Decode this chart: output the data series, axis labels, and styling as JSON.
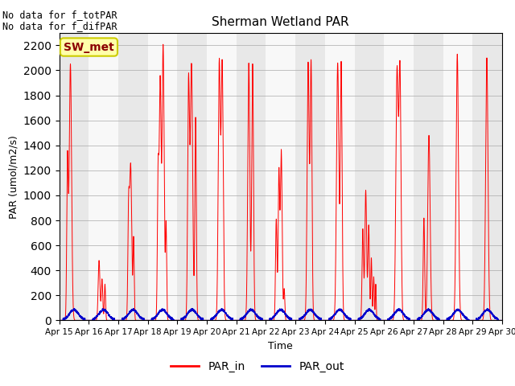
{
  "title": "Sherman Wetland PAR",
  "xlabel": "Time",
  "ylabel": "PAR (umol/m2/s)",
  "ylim": [
    0,
    2300
  ],
  "yticks": [
    0,
    200,
    400,
    600,
    800,
    1000,
    1200,
    1400,
    1600,
    1800,
    2000,
    2200
  ],
  "annotation_text_1": "No data for f_totPAR",
  "annotation_text_2": "No data for f_difPAR",
  "legend_label_sw": "SW_met",
  "legend_label_in": "PAR_in",
  "legend_label_out": "PAR_out",
  "line_color_in": "#FF0000",
  "line_color_out": "#0000CC",
  "n_days": 15,
  "start_day": 15,
  "bg_color_odd": "#E8E8E8",
  "bg_color_even": "#F8F8F8"
}
